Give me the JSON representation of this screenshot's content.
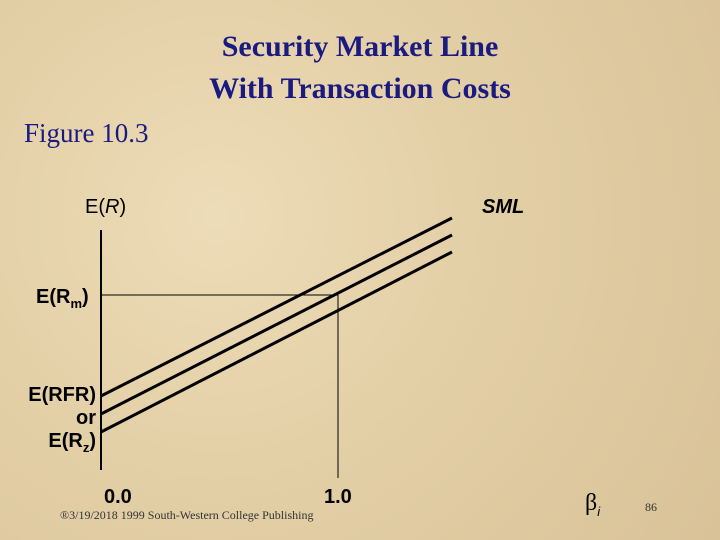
{
  "title": {
    "line1": "Security Market Line",
    "line2": "With Transaction Costs"
  },
  "figure": "Figure 10.3",
  "labels": {
    "y_axis": {
      "main": "E(",
      "italic": "R",
      "tail": ")"
    },
    "sml": "SML",
    "market": {
      "main": "E(R",
      "sub": "m",
      "tail": ")"
    },
    "risk_free": {
      "line1": "E(RFR)",
      "line2": "or",
      "line3": {
        "main": "E(R",
        "sub": "z",
        "tail": ")"
      }
    },
    "x_origin": "0.0",
    "x_one": "1.0",
    "beta": {
      "main": "β",
      "sub": "i"
    }
  },
  "footer": "®3/19/2018 1999 South-Western College Publishing",
  "page_number": "86"
}
